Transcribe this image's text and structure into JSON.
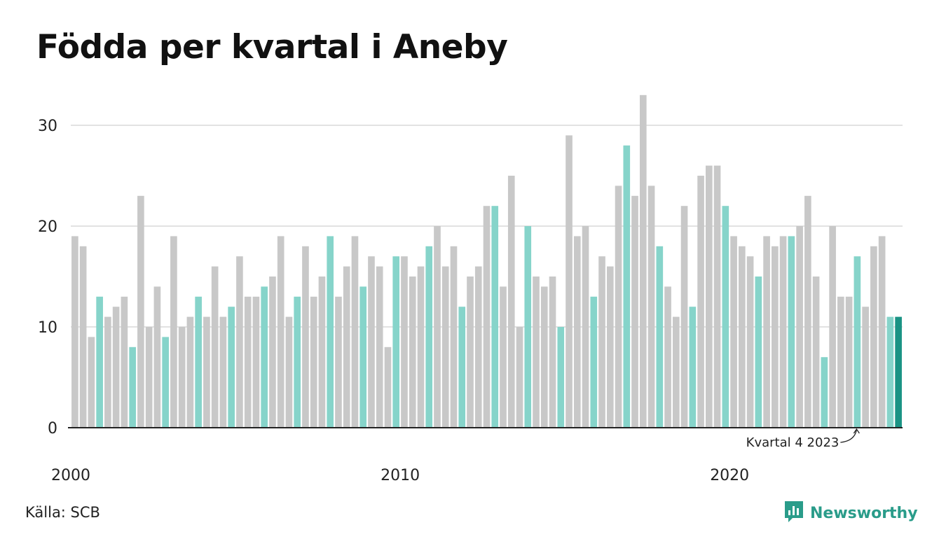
{
  "title": "Födda per kvartal i Aneby",
  "source": "Källa: SCB",
  "brand": {
    "name": "Newsworthy",
    "color": "#2a9c8a",
    "icon": "bar-chart-bubble-icon"
  },
  "colors": {
    "default": "#c8c8c8",
    "q4": "#86d4ca",
    "latest": "#1a9384",
    "grid": "#e2e2e2",
    "axis": "#222222"
  },
  "chart_data": {
    "type": "bar",
    "title": "Födda per kvartal i Aneby",
    "xlabel": "",
    "ylabel": "",
    "ylim": [
      0,
      33
    ],
    "yticks": [
      0,
      10,
      20,
      30
    ],
    "x_tick_labels": [
      "2000",
      "2010",
      "2020"
    ],
    "grid": true,
    "start_year": 2000,
    "categories": [
      "2000 K1",
      "2000 K2",
      "2000 K3",
      "2000 K4",
      "2001 K1",
      "2001 K2",
      "2001 K3",
      "2001 K4",
      "2002 K1",
      "2002 K2",
      "2002 K3",
      "2002 K4",
      "2003 K1",
      "2003 K2",
      "2003 K3",
      "2003 K4",
      "2004 K1",
      "2004 K2",
      "2004 K3",
      "2004 K4",
      "2005 K1",
      "2005 K2",
      "2005 K3",
      "2005 K4",
      "2006 K1",
      "2006 K2",
      "2006 K3",
      "2006 K4",
      "2007 K1",
      "2007 K2",
      "2007 K3",
      "2007 K4",
      "2008 K1",
      "2008 K2",
      "2008 K3",
      "2008 K4",
      "2009 K1",
      "2009 K2",
      "2009 K3",
      "2009 K4",
      "2010 K1",
      "2010 K2",
      "2010 K3",
      "2010 K4",
      "2011 K1",
      "2011 K2",
      "2011 K3",
      "2011 K4",
      "2012 K1",
      "2012 K2",
      "2012 K3",
      "2012 K4",
      "2013 K1",
      "2013 K2",
      "2013 K3",
      "2013 K4",
      "2014 K1",
      "2014 K2",
      "2014 K3",
      "2014 K4",
      "2015 K1",
      "2015 K2",
      "2015 K3",
      "2015 K4",
      "2016 K1",
      "2016 K2",
      "2016 K3",
      "2016 K4",
      "2017 K1",
      "2017 K2",
      "2017 K3",
      "2017 K4",
      "2018 K1",
      "2018 K2",
      "2018 K3",
      "2018 K4",
      "2019 K1",
      "2019 K2",
      "2019 K3",
      "2019 K4",
      "2020 K1",
      "2020 K2",
      "2020 K3",
      "2020 K4",
      "2021 K1",
      "2021 K2",
      "2021 K3",
      "2021 K4",
      "2022 K1",
      "2022 K2",
      "2022 K3",
      "2022 K4",
      "2023 K1",
      "2023 K2",
      "2023 K3",
      "2023 K4",
      "2024 K1",
      "2024 K2",
      "2024 K3",
      "2024 K4",
      "2025 K1"
    ],
    "values": [
      19,
      18,
      9,
      13,
      11,
      12,
      13,
      8,
      23,
      10,
      14,
      9,
      19,
      10,
      11,
      13,
      11,
      16,
      11,
      12,
      17,
      13,
      13,
      14,
      15,
      19,
      11,
      13,
      18,
      13,
      15,
      19,
      13,
      16,
      19,
      14,
      17,
      16,
      8,
      17,
      17,
      15,
      16,
      18,
      20,
      16,
      18,
      12,
      15,
      16,
      22,
      22,
      14,
      25,
      10,
      20,
      15,
      14,
      15,
      10,
      29,
      19,
      20,
      13,
      17,
      16,
      24,
      28,
      23,
      33,
      24,
      18,
      14,
      11,
      22,
      12,
      25,
      26,
      26,
      22,
      19,
      18,
      17,
      15,
      19,
      18,
      19,
      19,
      20,
      23,
      15,
      7,
      20,
      13,
      13,
      17,
      12,
      18,
      19,
      11,
      11
    ],
    "highlight_quarter": 4,
    "annotation": {
      "text": "Kvartal 4 2023",
      "category": "2023 K4"
    }
  }
}
